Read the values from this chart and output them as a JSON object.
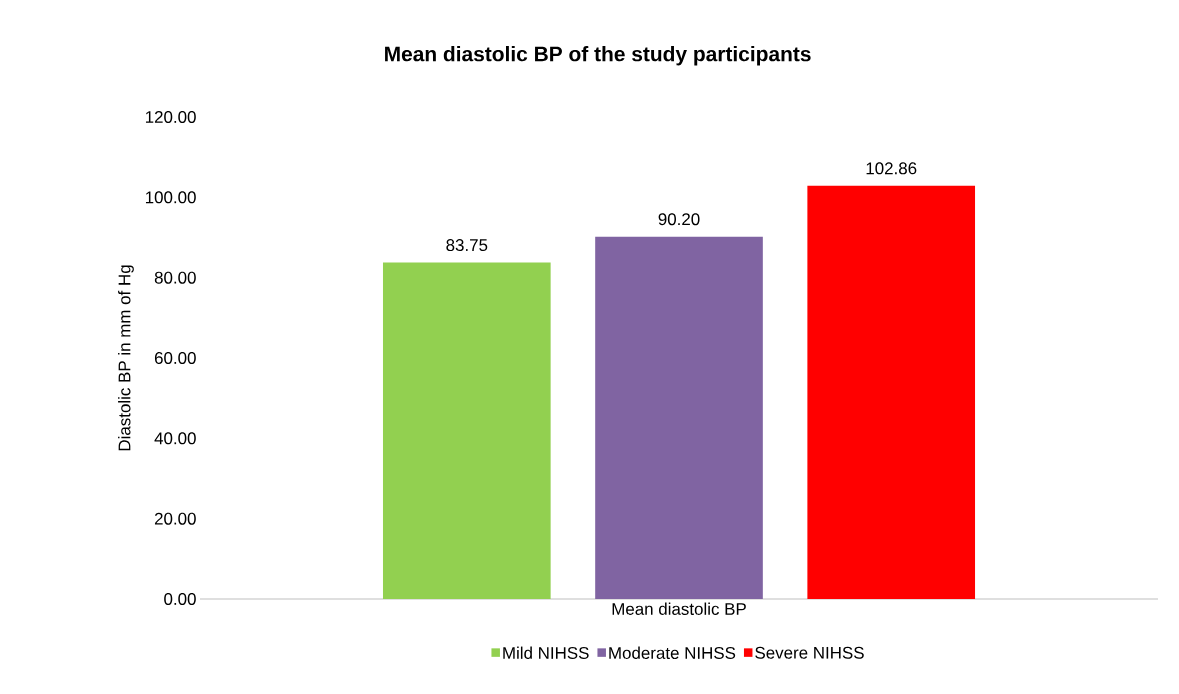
{
  "chart_data": {
    "type": "bar",
    "title": "Mean diastolic BP of the study participants",
    "ylabel": "Diastolic BP in mm of Hg",
    "categories": [
      "Mean diastolic BP"
    ],
    "series": [
      {
        "name": "Mild NIHSS",
        "color": "#92d050",
        "values": [
          83.75
        ],
        "value_labels": [
          "83.75"
        ]
      },
      {
        "name": "Moderate NIHSS",
        "color": "#8064a2",
        "values": [
          90.2
        ],
        "value_labels": [
          "90.20"
        ]
      },
      {
        "name": "Severe NIHSS",
        "color": "#ff0000",
        "values": [
          102.86
        ],
        "value_labels": [
          "102.86"
        ]
      }
    ],
    "ylim": [
      0,
      120
    ],
    "yticks": [
      {
        "value": 0,
        "label": "0.00"
      },
      {
        "value": 20,
        "label": "20.00"
      },
      {
        "value": 40,
        "label": "40.00"
      },
      {
        "value": 60,
        "label": "60.00"
      },
      {
        "value": 80,
        "label": "80.00"
      },
      {
        "value": 100,
        "label": "100.00"
      },
      {
        "value": 120,
        "label": "120.00"
      }
    ],
    "legend": "bottom",
    "grid": false
  }
}
